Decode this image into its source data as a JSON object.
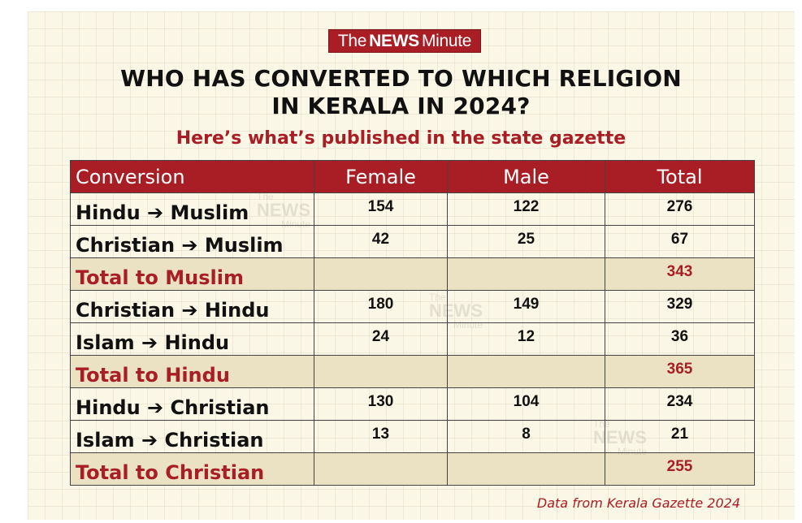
{
  "logo": {
    "the": "The",
    "news": "NEWS",
    "minute": "Minute"
  },
  "title_line1": "WHO HAS CONVERTED TO WHICH RELIGION",
  "title_line2": "IN KERALA IN 2024?",
  "subtitle": "Here’s what’s published in the state gazette",
  "table": {
    "headers": [
      "Conversion",
      "Female",
      "Male",
      "Total"
    ],
    "rows": [
      {
        "label": "Hindu ➔ Muslim",
        "female": "154",
        "male": "122",
        "total": "276"
      },
      {
        "label": "Christian ➔ Muslim",
        "female": "42",
        "male": "25",
        "total": "67"
      },
      {
        "label": "Total to Muslim",
        "female": "",
        "male": "",
        "total": "343"
      },
      {
        "label": "Christian ➔ Hindu",
        "female": "180",
        "male": "149",
        "total": "329"
      },
      {
        "label": "Islam ➔ Hindu",
        "female": "24",
        "male": "12",
        "total": "36"
      },
      {
        "label": "Total to Hindu",
        "female": "",
        "male": "",
        "total": "365"
      },
      {
        "label": "Hindu ➔ Christian",
        "female": "130",
        "male": "104",
        "total": "234"
      },
      {
        "label": "Islam ➔ Christian",
        "female": "13",
        "male": "8",
        "total": "21"
      },
      {
        "label": "Total to Christian",
        "female": "",
        "male": "",
        "total": "255"
      }
    ]
  },
  "footer": "Data from Kerala Gazette 2024",
  "colors": {
    "brand_red": "#a81e24",
    "background": "#fbf7e6",
    "total_row": "#ebe2c3"
  }
}
